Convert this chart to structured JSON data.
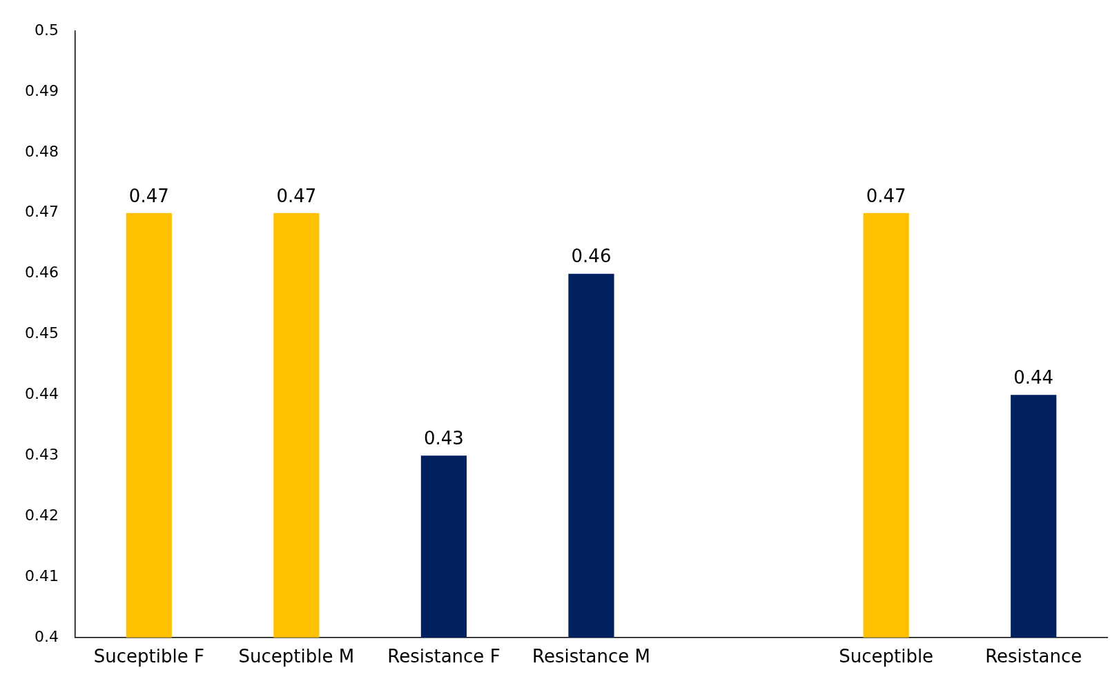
{
  "chart_data": {
    "type": "bar",
    "categories": [
      "Suceptible F",
      "Suceptible M",
      "Resistance F",
      "Resistance M",
      null,
      "Suceptible",
      "Resistance"
    ],
    "values": [
      0.47,
      0.47,
      0.43,
      0.46,
      null,
      0.47,
      0.44
    ],
    "colors": [
      "#ffc000",
      "#ffc000",
      "#002060",
      "#002060",
      null,
      "#ffc000",
      "#002060"
    ],
    "ylim": [
      0.4,
      0.5
    ],
    "yticks": [
      0.4,
      0.41,
      0.42,
      0.43,
      0.44,
      0.45,
      0.46,
      0.47,
      0.48,
      0.49,
      0.5
    ],
    "grid": false,
    "legend": false,
    "data_labels": true
  }
}
